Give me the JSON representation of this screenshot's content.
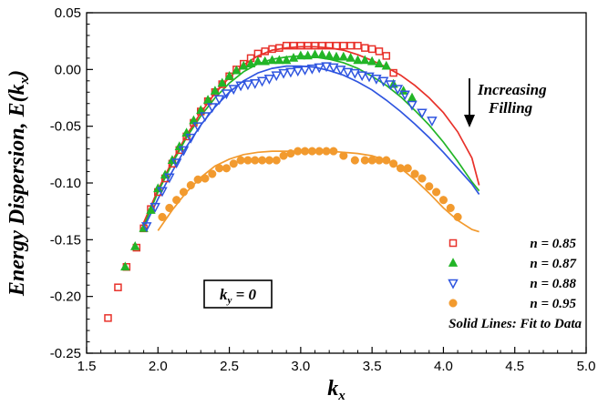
{
  "chart_data": {
    "type": "scatter",
    "title": "",
    "xlabel": "k",
    "xlabel_sub": "x",
    "ylabel": "Energy Dispersion, E(k",
    "ylabel_sub": "x",
    "ylabel_end": ")",
    "xlim": [
      1.5,
      5.0
    ],
    "ylim": [
      -0.25,
      0.05
    ],
    "xticks": [
      1.5,
      2.0,
      2.5,
      3.0,
      3.5,
      4.0,
      4.5,
      5.0
    ],
    "xtick_labels": [
      "1.5",
      "2.0",
      "2.5",
      "3.0",
      "3.5",
      "4.0",
      "4.5",
      "5.0"
    ],
    "yticks": [
      -0.25,
      -0.2,
      -0.15,
      -0.1,
      -0.05,
      0.0,
      0.05
    ],
    "ytick_labels": [
      "-0.25",
      "-0.20",
      "-0.15",
      "-0.10",
      "-0.05",
      "0.00",
      "0.05"
    ],
    "grid": false,
    "legend_position": "bottom-right",
    "series": [
      {
        "name": "n = 0.85",
        "marker": "square",
        "color": "#e8312a",
        "points": [
          [
            1.65,
            -0.219
          ],
          [
            1.72,
            -0.192
          ],
          [
            1.78,
            -0.174
          ],
          [
            1.85,
            -0.157
          ],
          [
            1.9,
            -0.14
          ],
          [
            1.95,
            -0.123
          ],
          [
            2.0,
            -0.108
          ],
          [
            2.05,
            -0.096
          ],
          [
            2.1,
            -0.083
          ],
          [
            2.15,
            -0.071
          ],
          [
            2.2,
            -0.059
          ],
          [
            2.25,
            -0.047
          ],
          [
            2.3,
            -0.037
          ],
          [
            2.35,
            -0.028
          ],
          [
            2.4,
            -0.02
          ],
          [
            2.45,
            -0.013
          ],
          [
            2.5,
            -0.006
          ],
          [
            2.55,
            0.0
          ],
          [
            2.6,
            0.005
          ],
          [
            2.65,
            0.01
          ],
          [
            2.7,
            0.014
          ],
          [
            2.75,
            0.016
          ],
          [
            2.8,
            0.018
          ],
          [
            2.85,
            0.019
          ],
          [
            2.9,
            0.021
          ],
          [
            2.95,
            0.021
          ],
          [
            3.0,
            0.021
          ],
          [
            3.05,
            0.021
          ],
          [
            3.1,
            0.021
          ],
          [
            3.15,
            0.021
          ],
          [
            3.2,
            0.021
          ],
          [
            3.25,
            0.021
          ],
          [
            3.3,
            0.021
          ],
          [
            3.35,
            0.021
          ],
          [
            3.4,
            0.021
          ],
          [
            3.45,
            0.019
          ],
          [
            3.5,
            0.018
          ],
          [
            3.55,
            0.016
          ],
          [
            3.6,
            0.012
          ],
          [
            3.65,
            -0.003
          ]
        ],
        "fit": [
          [
            1.9,
            -0.135
          ],
          [
            2.0,
            -0.106
          ],
          [
            2.1,
            -0.081
          ],
          [
            2.2,
            -0.058
          ],
          [
            2.3,
            -0.038
          ],
          [
            2.4,
            -0.021
          ],
          [
            2.5,
            -0.007
          ],
          [
            2.6,
            0.004
          ],
          [
            2.7,
            0.012
          ],
          [
            2.8,
            0.017
          ],
          [
            2.9,
            0.019
          ],
          [
            3.0,
            0.02
          ],
          [
            3.1,
            0.02
          ],
          [
            3.2,
            0.019
          ],
          [
            3.3,
            0.017
          ],
          [
            3.4,
            0.013
          ],
          [
            3.5,
            0.008
          ],
          [
            3.6,
            0.002
          ],
          [
            3.7,
            -0.005
          ],
          [
            3.8,
            -0.014
          ],
          [
            3.9,
            -0.025
          ],
          [
            4.0,
            -0.038
          ],
          [
            4.1,
            -0.055
          ],
          [
            4.2,
            -0.078
          ],
          [
            4.25,
            -0.102
          ]
        ]
      },
      {
        "name": "n = 0.87",
        "marker": "triangle-up",
        "color": "#22b527",
        "points": [
          [
            1.77,
            -0.174
          ],
          [
            1.84,
            -0.156
          ],
          [
            1.9,
            -0.14
          ],
          [
            1.95,
            -0.124
          ],
          [
            2.0,
            -0.105
          ],
          [
            2.05,
            -0.093
          ],
          [
            2.1,
            -0.08
          ],
          [
            2.15,
            -0.068
          ],
          [
            2.2,
            -0.056
          ],
          [
            2.25,
            -0.045
          ],
          [
            2.3,
            -0.036
          ],
          [
            2.35,
            -0.027
          ],
          [
            2.4,
            -0.019
          ],
          [
            2.45,
            -0.012
          ],
          [
            2.5,
            -0.006
          ],
          [
            2.55,
            -0.001
          ],
          [
            2.6,
            0.003
          ],
          [
            2.65,
            0.005
          ],
          [
            2.7,
            0.007
          ],
          [
            2.75,
            0.007
          ],
          [
            2.8,
            0.008
          ],
          [
            2.85,
            0.008
          ],
          [
            2.9,
            0.008
          ],
          [
            2.95,
            0.01
          ],
          [
            3.0,
            0.012
          ],
          [
            3.05,
            0.012
          ],
          [
            3.1,
            0.013
          ],
          [
            3.15,
            0.013
          ],
          [
            3.2,
            0.012
          ],
          [
            3.25,
            0.011
          ],
          [
            3.3,
            0.011
          ],
          [
            3.35,
            0.01
          ],
          [
            3.4,
            0.008
          ],
          [
            3.45,
            0.008
          ],
          [
            3.5,
            0.007
          ],
          [
            3.55,
            0.005
          ],
          [
            3.6,
            0.003
          ],
          [
            3.65,
            -0.013
          ],
          [
            3.72,
            -0.019
          ],
          [
            3.78,
            -0.025
          ]
        ],
        "fit": [
          [
            1.9,
            -0.138
          ],
          [
            2.0,
            -0.108
          ],
          [
            2.1,
            -0.083
          ],
          [
            2.2,
            -0.06
          ],
          [
            2.3,
            -0.041
          ],
          [
            2.4,
            -0.025
          ],
          [
            2.5,
            -0.012
          ],
          [
            2.6,
            -0.002
          ],
          [
            2.7,
            0.005
          ],
          [
            2.8,
            0.009
          ],
          [
            2.9,
            0.011
          ],
          [
            3.0,
            0.012
          ],
          [
            3.1,
            0.011
          ],
          [
            3.2,
            0.009
          ],
          [
            3.3,
            0.006
          ],
          [
            3.4,
            0.001
          ],
          [
            3.5,
            -0.006
          ],
          [
            3.6,
            -0.014
          ],
          [
            3.7,
            -0.024
          ],
          [
            3.8,
            -0.036
          ],
          [
            3.9,
            -0.049
          ],
          [
            4.0,
            -0.064
          ],
          [
            4.1,
            -0.081
          ],
          [
            4.2,
            -0.099
          ],
          [
            4.25,
            -0.107
          ]
        ]
      },
      {
        "name": "n = 0.88",
        "marker": "triangle-down",
        "color": "#2f55e0",
        "points": [
          [
            1.92,
            -0.138
          ],
          [
            1.98,
            -0.121
          ],
          [
            2.03,
            -0.107
          ],
          [
            2.08,
            -0.095
          ],
          [
            2.13,
            -0.082
          ],
          [
            2.18,
            -0.071
          ],
          [
            2.23,
            -0.06
          ],
          [
            2.28,
            -0.05
          ],
          [
            2.33,
            -0.041
          ],
          [
            2.38,
            -0.033
          ],
          [
            2.43,
            -0.026
          ],
          [
            2.48,
            -0.021
          ],
          [
            2.53,
            -0.017
          ],
          [
            2.58,
            -0.014
          ],
          [
            2.63,
            -0.013
          ],
          [
            2.68,
            -0.012
          ],
          [
            2.73,
            -0.01
          ],
          [
            2.78,
            -0.008
          ],
          [
            2.83,
            -0.005
          ],
          [
            2.88,
            -0.003
          ],
          [
            2.93,
            -0.002
          ],
          [
            2.98,
            -0.001
          ],
          [
            3.03,
            0.0
          ],
          [
            3.08,
            0.001
          ],
          [
            3.13,
            0.002
          ],
          [
            3.18,
            0.003
          ],
          [
            3.23,
            0.002
          ],
          [
            3.28,
            0.0
          ],
          [
            3.33,
            -0.002
          ],
          [
            3.38,
            -0.003
          ],
          [
            3.43,
            -0.005
          ],
          [
            3.48,
            -0.006
          ],
          [
            3.53,
            -0.008
          ],
          [
            3.58,
            -0.01
          ],
          [
            3.63,
            -0.013
          ],
          [
            3.68,
            -0.017
          ],
          [
            3.73,
            -0.022
          ],
          [
            3.78,
            -0.031
          ],
          [
            3.85,
            -0.038
          ],
          [
            3.92,
            -0.045
          ]
        ],
        "fit": [
          [
            1.9,
            -0.14
          ],
          [
            2.0,
            -0.114
          ],
          [
            2.1,
            -0.09
          ],
          [
            2.2,
            -0.068
          ],
          [
            2.3,
            -0.049
          ],
          [
            2.4,
            -0.033
          ],
          [
            2.5,
            -0.02
          ],
          [
            2.6,
            -0.01
          ],
          [
            2.7,
            -0.003
          ],
          [
            2.8,
            0.001
          ],
          [
            2.9,
            0.003
          ],
          [
            3.0,
            0.003
          ],
          [
            3.1,
            0.002
          ],
          [
            3.2,
            -0.001
          ],
          [
            3.3,
            -0.005
          ],
          [
            3.4,
            -0.011
          ],
          [
            3.5,
            -0.018
          ],
          [
            3.6,
            -0.027
          ],
          [
            3.7,
            -0.037
          ],
          [
            3.8,
            -0.048
          ],
          [
            3.9,
            -0.06
          ],
          [
            4.0,
            -0.073
          ],
          [
            4.1,
            -0.087
          ],
          [
            4.2,
            -0.101
          ],
          [
            4.25,
            -0.11
          ]
        ]
      },
      {
        "name": "n = 0.95",
        "marker": "circle",
        "color": "#f29a2e",
        "points": [
          [
            2.03,
            -0.13
          ],
          [
            2.08,
            -0.122
          ],
          [
            2.13,
            -0.115
          ],
          [
            2.18,
            -0.108
          ],
          [
            2.23,
            -0.102
          ],
          [
            2.28,
            -0.097
          ],
          [
            2.33,
            -0.096
          ],
          [
            2.38,
            -0.092
          ],
          [
            2.43,
            -0.087
          ],
          [
            2.48,
            -0.087
          ],
          [
            2.53,
            -0.083
          ],
          [
            2.58,
            -0.08
          ],
          [
            2.63,
            -0.08
          ],
          [
            2.68,
            -0.08
          ],
          [
            2.73,
            -0.08
          ],
          [
            2.78,
            -0.08
          ],
          [
            2.83,
            -0.08
          ],
          [
            2.88,
            -0.076
          ],
          [
            2.93,
            -0.074
          ],
          [
            2.98,
            -0.072
          ],
          [
            3.03,
            -0.072
          ],
          [
            3.08,
            -0.072
          ],
          [
            3.13,
            -0.072
          ],
          [
            3.18,
            -0.072
          ],
          [
            3.23,
            -0.072
          ],
          [
            3.3,
            -0.076
          ],
          [
            3.38,
            -0.08
          ],
          [
            3.45,
            -0.08
          ],
          [
            3.5,
            -0.08
          ],
          [
            3.55,
            -0.08
          ],
          [
            3.6,
            -0.08
          ],
          [
            3.65,
            -0.083
          ],
          [
            3.7,
            -0.087
          ],
          [
            3.75,
            -0.087
          ],
          [
            3.8,
            -0.092
          ],
          [
            3.85,
            -0.096
          ],
          [
            3.9,
            -0.103
          ],
          [
            3.95,
            -0.108
          ],
          [
            4.0,
            -0.115
          ],
          [
            4.05,
            -0.122
          ],
          [
            4.1,
            -0.13
          ]
        ],
        "fit": [
          [
            2.0,
            -0.142
          ],
          [
            2.1,
            -0.124
          ],
          [
            2.2,
            -0.108
          ],
          [
            2.3,
            -0.095
          ],
          [
            2.4,
            -0.085
          ],
          [
            2.5,
            -0.079
          ],
          [
            2.6,
            -0.075
          ],
          [
            2.7,
            -0.073
          ],
          [
            2.8,
            -0.072
          ],
          [
            2.9,
            -0.072
          ],
          [
            3.0,
            -0.072
          ],
          [
            3.1,
            -0.072
          ],
          [
            3.2,
            -0.072
          ],
          [
            3.3,
            -0.073
          ],
          [
            3.4,
            -0.074
          ],
          [
            3.5,
            -0.076
          ],
          [
            3.6,
            -0.08
          ],
          [
            3.7,
            -0.087
          ],
          [
            3.8,
            -0.097
          ],
          [
            3.9,
            -0.109
          ],
          [
            4.0,
            -0.122
          ],
          [
            4.1,
            -0.133
          ],
          [
            4.2,
            -0.141
          ],
          [
            4.25,
            -0.143
          ]
        ]
      }
    ],
    "annotations": {
      "increasing": "Increasing",
      "filling": "Filling",
      "ky_main": "k",
      "ky_sub": "y",
      "ky_rest": " = 0",
      "fit_note": "Solid Lines: Fit to Data"
    }
  }
}
